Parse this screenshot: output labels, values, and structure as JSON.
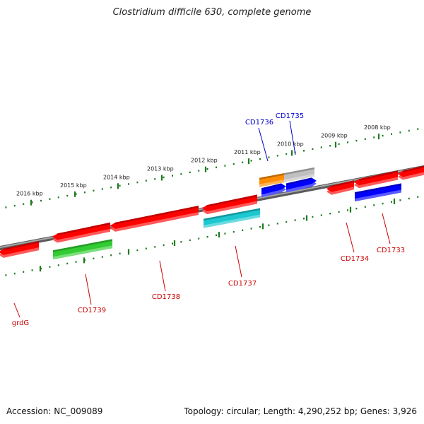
{
  "header": {
    "title": "Clostridium difficile 630, complete genome"
  },
  "footer": {
    "accession": "Accession: NC_009089",
    "summary": "Topology: circular; Length: 4,290,252 bp; Genes: 3,926"
  },
  "colors": {
    "backbone": "#7d7d7d",
    "forward_tick": "#1f7a1f",
    "label_red": "#cc0000",
    "label_blue": "#0000cc",
    "red": "#ff0000",
    "green": "#33cc33",
    "blue": "#0000ff",
    "orange": "#ff8c00",
    "gray": "#c0c0c0",
    "cyan": "#1cc8d0",
    "steel": "#4f7fb0"
  },
  "scale": {
    "unit": "kbp",
    "ticks": [
      {
        "kbp": 2008,
        "label": "2008 kbp"
      },
      {
        "kbp": 2009,
        "label": "2009 kbp"
      },
      {
        "kbp": 2010,
        "label": "2010 kbp"
      },
      {
        "kbp": 2011,
        "label": "2011 kbp"
      },
      {
        "kbp": 2012,
        "label": "2012 kbp"
      },
      {
        "kbp": 2013,
        "label": "2013 kbp"
      },
      {
        "kbp": 2014,
        "label": "2014 kbp"
      },
      {
        "kbp": 2015,
        "label": "2015 kbp"
      },
      {
        "kbp": 2016,
        "label": "2016 kbp"
      }
    ]
  },
  "genes": [
    {
      "id": "grdG",
      "label": "grdG",
      "color": "red"
    },
    {
      "id": "CD1739",
      "label": "CD1739",
      "color": "green"
    },
    {
      "id": "CD1738",
      "label": "CD1738",
      "color": "red"
    },
    {
      "id": "CD1737",
      "label": "CD1737",
      "color": "cyan"
    },
    {
      "id": "CD1736",
      "label": "CD1736",
      "color": "orange"
    },
    {
      "id": "CD1735",
      "label": "CD1735",
      "color": "blue"
    },
    {
      "id": "CD1734",
      "label": "CD1734",
      "color": "red"
    },
    {
      "id": "CD1733",
      "label": "CD1733",
      "color": "blue"
    }
  ]
}
